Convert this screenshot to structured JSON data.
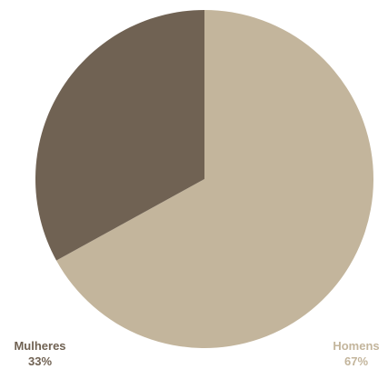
{
  "chart_data": {
    "type": "pie",
    "title": "",
    "slices": [
      {
        "label": "Mulheres",
        "value": 33,
        "display": "33%",
        "color": "#706253"
      },
      {
        "label": "Homens",
        "value": 67,
        "display": "67%",
        "color": "#c3b59c"
      }
    ],
    "start": "top",
    "direction": "clockwise-from-homens",
    "legend": "bottom-corners"
  }
}
